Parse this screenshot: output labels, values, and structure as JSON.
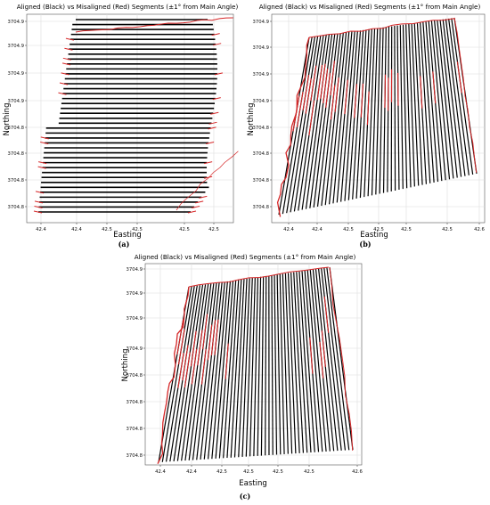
{
  "figure": {
    "caption_a": "(a)",
    "caption_b": "(b)",
    "caption_c": "(c)"
  },
  "chart_data": [
    {
      "type": "line",
      "title": "Aligned (Black) vs Misaligned (Red) Segments (±1° from Main Angle)",
      "xlabel": "Easting",
      "ylabel": "Northing",
      "x_ticks": [
        "42.4",
        "42.4",
        "42.5",
        "42.5",
        "42.5",
        "42.5"
      ],
      "y_ticks": [
        "3704.9",
        "3704.9",
        "3704.9",
        "3704.9",
        "3704.8",
        "3704.8",
        "3704.8",
        "3704.8"
      ],
      "grid": true,
      "orientation": "horizontal",
      "line_count": 40,
      "series": [
        {
          "name": "Aligned",
          "color": "#000000"
        },
        {
          "name": "Misaligned",
          "color": "#d62728"
        }
      ]
    },
    {
      "type": "line",
      "title": "Aligned (Black) vs Misaligned (Red) Segments (±1° from Main Angle)",
      "xlabel": "Easting",
      "ylabel": "Northing",
      "x_ticks": [
        "42.4",
        "42.4",
        "42.5",
        "42.5",
        "42.5",
        "42.5",
        "42.6"
      ],
      "y_ticks": [
        "3704.9",
        "3704.9",
        "3704.9",
        "3704.9",
        "3704.8",
        "3704.8",
        "3704.8",
        "3704.8"
      ],
      "grid": true,
      "orientation": "diagonal",
      "line_count": 52,
      "series": [
        {
          "name": "Aligned",
          "color": "#000000"
        },
        {
          "name": "Misaligned",
          "color": "#d62728"
        }
      ]
    },
    {
      "type": "line",
      "title": "Aligned (Black) vs Misaligned (Red) Segments (±1° from Main Angle)",
      "xlabel": "Easting",
      "ylabel": "Northing",
      "x_ticks": [
        "42.4",
        "42.4",
        "42.5",
        "42.5",
        "42.5",
        "42.5",
        "42.6"
      ],
      "y_ticks": [
        "3704.9",
        "3704.9",
        "3704.9",
        "3704.9",
        "3704.8",
        "3704.8",
        "3704.8",
        "3704.8"
      ],
      "grid": true,
      "orientation": "diagonal",
      "line_count": 52,
      "series": [
        {
          "name": "Aligned",
          "color": "#000000"
        },
        {
          "name": "Misaligned",
          "color": "#d62728"
        }
      ]
    }
  ]
}
